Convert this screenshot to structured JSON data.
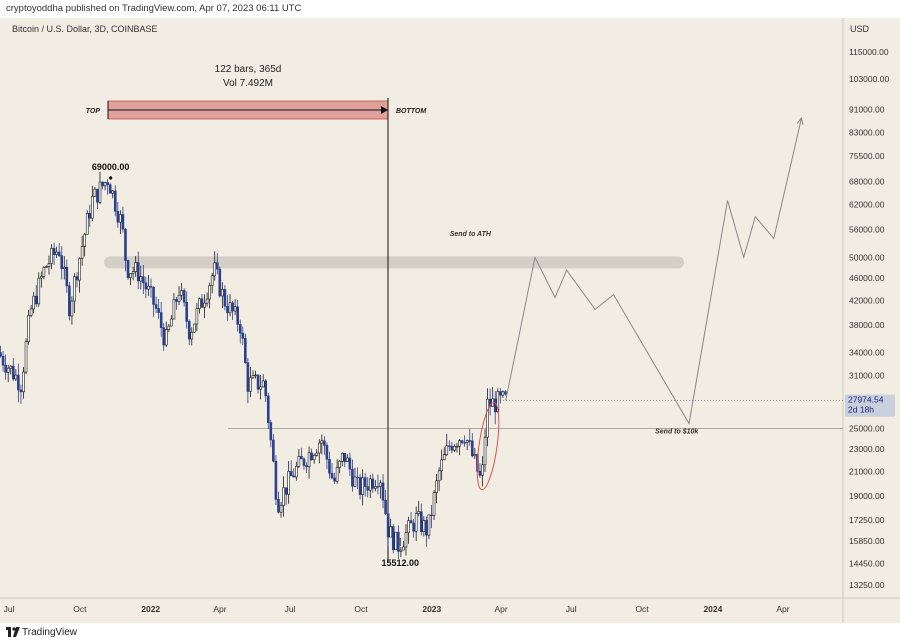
{
  "header": {
    "published": "cryptoyoddha published on TradingView.com, Apr 07, 2023 06:11 UTC"
  },
  "footer": {
    "brand": "TradingView"
  },
  "colors": {
    "background": "#f2ede3",
    "candle_up": "#ffffff",
    "candle_down": "#2b3f8e",
    "box_fill": "#e0a19d",
    "projection": "#888888",
    "ellipse": "#e05050"
  },
  "chart_data": {
    "type": "candlestick",
    "title": "Bitcoin / U.S. Dollar, 3D, COINBASE",
    "currency": "USD",
    "scale": "log",
    "x_tick_labels": [
      "Jul",
      "Oct",
      "2022",
      "Apr",
      "Jul",
      "Oct",
      "2023",
      "Apr",
      "Jul",
      "Oct",
      "2024",
      "Apr"
    ],
    "y_tick_labels": [
      "115000.00",
      "103000.00",
      "91000.00",
      "83000.00",
      "75500.00",
      "68000.00",
      "62000.00",
      "56000.00",
      "50000.00",
      "46000.00",
      "42000.00",
      "38000.00",
      "34000.00",
      "31000.00",
      "25000.00",
      "23000.00",
      "21000.00",
      "19000.00",
      "17250.00",
      "15850.00",
      "14450.00",
      "13250.00"
    ],
    "y_ticks": [
      115000,
      103000,
      91000,
      83000,
      75500,
      68000,
      62000,
      56000,
      50000,
      46000,
      42000,
      38000,
      34000,
      31000,
      25000,
      23000,
      21000,
      19000,
      17250,
      15850,
      14450,
      13250
    ],
    "price_path": [
      [
        "2021-06-20",
        34000
      ],
      [
        "2021-07-20",
        30000
      ],
      [
        "2021-08-01",
        40000
      ],
      [
        "2021-08-20",
        48000
      ],
      [
        "2021-09-07",
        52000
      ],
      [
        "2021-09-21",
        41000
      ],
      [
        "2021-10-01",
        48000
      ],
      [
        "2021-10-20",
        63000
      ],
      [
        "2021-11-10",
        69000
      ],
      [
        "2021-11-28",
        57000
      ],
      [
        "2021-12-04",
        48000
      ],
      [
        "2021-12-20",
        47000
      ],
      [
        "2022-01-10",
        41000
      ],
      [
        "2022-01-24",
        35500
      ],
      [
        "2022-02-10",
        44000
      ],
      [
        "2022-02-24",
        37000
      ],
      [
        "2022-03-28",
        47500
      ],
      [
        "2022-04-10",
        42000
      ],
      [
        "2022-05-01",
        38000
      ],
      [
        "2022-05-10",
        30000
      ],
      [
        "2022-06-01",
        30000
      ],
      [
        "2022-06-18",
        18500
      ],
      [
        "2022-07-10",
        21000
      ],
      [
        "2022-08-14",
        24000
      ],
      [
        "2022-08-30",
        20000
      ],
      [
        "2022-09-12",
        22500
      ],
      [
        "2022-10-01",
        19500
      ],
      [
        "2022-10-29",
        20800
      ],
      [
        "2022-11-09",
        16500
      ],
      [
        "2022-11-21",
        15512
      ],
      [
        "2022-12-15",
        17300
      ],
      [
        "2022-12-30",
        16500
      ],
      [
        "2023-01-14",
        21000
      ],
      [
        "2023-01-28",
        23500
      ],
      [
        "2023-02-16",
        24500
      ],
      [
        "2023-03-10",
        20000
      ],
      [
        "2023-03-17",
        27500
      ],
      [
        "2023-04-07",
        27974.54
      ]
    ],
    "all_time_high": {
      "label": "69000.00",
      "value": 69000,
      "date": "2021-11-10"
    },
    "bottom_low": {
      "label": "15512.00",
      "value": 15512,
      "date": "2022-11-21"
    },
    "measure": {
      "bars_label": "122 bars, 365d",
      "volume_label": "Vol 7.492M",
      "from_label": "TOP",
      "to_label": "BOTTOM"
    },
    "current_price": {
      "label": "27974.54",
      "countdown": "2d 18h",
      "value": 27974.54
    },
    "resistance_band": {
      "value": 49000
    },
    "support_line": {
      "value": 25000
    },
    "projection": {
      "points": [
        [
          "2023-04-07",
          28000
        ],
        [
          "2023-05-15",
          50000
        ],
        [
          "2023-06-10",
          42500
        ],
        [
          "2023-06-25",
          47500
        ],
        [
          "2023-08-01",
          40500
        ],
        [
          "2023-08-25",
          43000
        ],
        [
          "2023-12-01",
          25500
        ],
        [
          "2024-01-20",
          63000
        ],
        [
          "2024-02-10",
          50000
        ],
        [
          "2024-02-25",
          59000
        ],
        [
          "2024-03-20",
          54000
        ],
        [
          "2024-04-25",
          88000
        ]
      ],
      "labels": [
        {
          "text": "Send to ATH",
          "date": "2023-02-20",
          "value": 54500
        },
        {
          "text": "Send to $10k",
          "date": "2023-11-15",
          "value": 24500
        }
      ]
    },
    "grid": false,
    "legend": "none"
  }
}
